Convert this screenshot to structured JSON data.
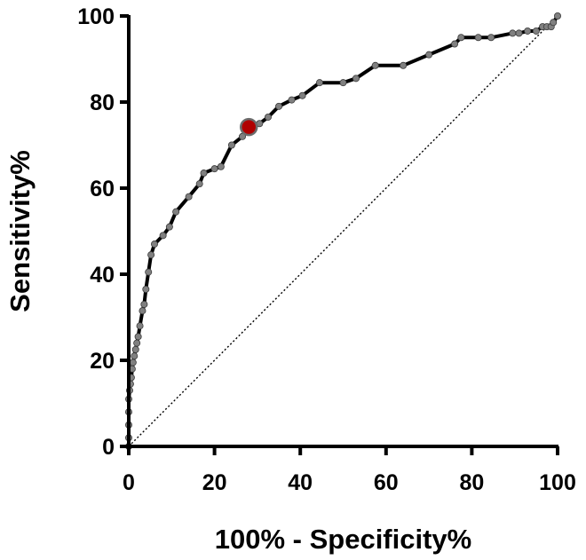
{
  "chart_data": {
    "type": "line",
    "title": "",
    "xlabel": "100% - Specificity%",
    "ylabel": "Sensitivity%",
    "xlim": [
      0,
      100
    ],
    "ylim": [
      0,
      100
    ],
    "xticks": [
      "0",
      "20",
      "40",
      "60",
      "80",
      "100"
    ],
    "yticks": [
      "0",
      "20",
      "40",
      "60",
      "80",
      "100"
    ],
    "grid": false,
    "legend": "none",
    "colors": {
      "curve": "#000000",
      "marker_fill": "#808080",
      "highlight_fill": "#b00000",
      "reference_line": "#000000"
    },
    "series": [
      {
        "x": [
          0,
          0,
          0,
          0,
          0,
          0.2,
          0.4,
          0.6,
          0.8,
          1.0,
          1.3,
          1.6,
          1.9,
          2.2,
          2.6,
          3.2,
          3.6,
          4.0,
          4.6,
          5.2,
          6.0,
          8.0,
          9.5,
          11.0,
          14.0,
          16.5,
          17.5,
          20.0,
          21.5,
          24.0,
          26.5,
          28.0,
          30.5,
          32.5,
          35.0,
          38.0,
          40.5,
          44.5,
          50.0,
          53.0,
          57.5,
          64.0,
          70.0,
          76.0,
          77.5,
          81.5,
          84.5,
          89.5,
          91.0,
          93.0,
          95.0,
          96.5,
          97.5,
          98.5,
          99.0,
          100.0
        ],
        "y": [
          0,
          2,
          5,
          8,
          11,
          13,
          14.5,
          16,
          18,
          19.5,
          21,
          22.5,
          24,
          25.5,
          28,
          31.5,
          33,
          36.5,
          40.5,
          44.5,
          47,
          49,
          51,
          54.5,
          58,
          61,
          63.5,
          64.5,
          65,
          70,
          72,
          74.2,
          75,
          76.5,
          79,
          80.5,
          81.5,
          84.5,
          84.5,
          85.5,
          88.5,
          88.5,
          91,
          93.5,
          95,
          95,
          95,
          96,
          96,
          96.5,
          96.5,
          97.5,
          97.5,
          97.5,
          98.5,
          100
        ],
        "highlight_point": {
          "x": 28.0,
          "y": 74.2
        }
      }
    ],
    "reference_line": {
      "x": [
        0,
        100
      ],
      "y": [
        0,
        100
      ]
    }
  }
}
